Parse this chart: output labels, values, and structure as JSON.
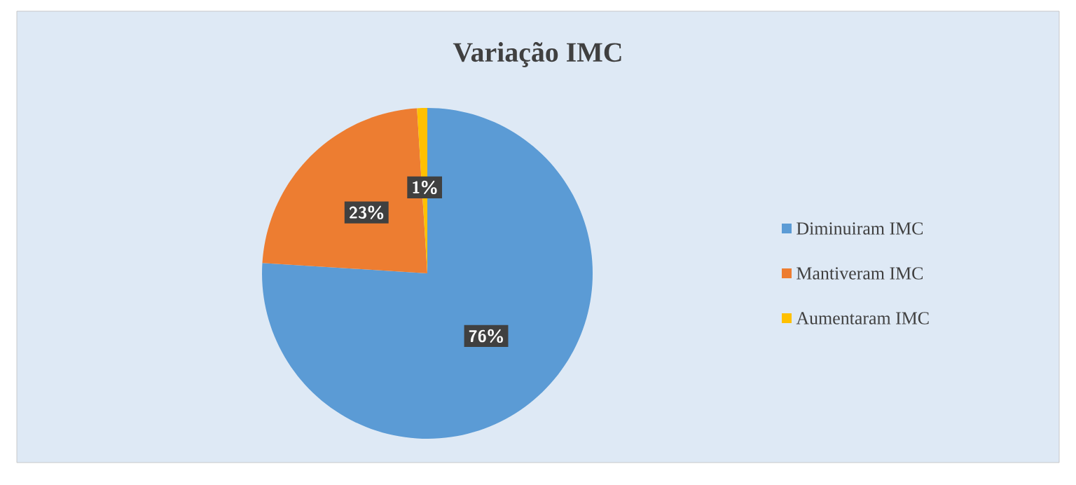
{
  "chart_data": {
    "type": "pie",
    "title": "Variação IMC",
    "categories": [
      "Diminuiram IMC",
      "Mantiveram IMC",
      "Aumentaram IMC"
    ],
    "values": [
      76,
      23,
      1
    ],
    "value_labels": [
      "76%",
      "23%",
      "1%"
    ],
    "colors": [
      "#5b9bd5",
      "#ed7d31",
      "#ffc000"
    ],
    "legend": "right"
  }
}
